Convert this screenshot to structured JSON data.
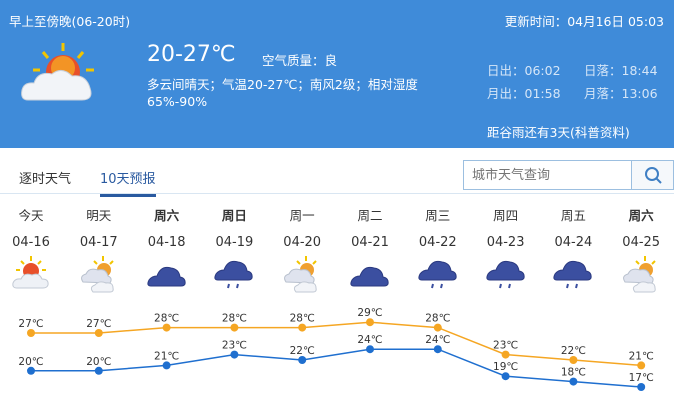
{
  "header": {
    "period": "早上至傍晚(06-20时)",
    "updated": "更新时间：04月16日 05:03",
    "temp_range": "20-27℃",
    "air_quality": "空气质量：良",
    "description": "多云间晴天；气温20-27℃；南风2级；相对湿度",
    "humidity": "65%-90%",
    "sunrise": "日出：06:02",
    "sunset": "日落：18:44",
    "moonrise": "月出：01:58",
    "moonset": "月落：13:06",
    "solar_term": "距谷雨还有3天(科普资料)",
    "icon": "partly-cloudy-icon",
    "bg_color": "#3f8bd9"
  },
  "tabs": [
    {
      "label": "逐时天气",
      "active": false
    },
    {
      "label": "10天预报",
      "active": true
    }
  ],
  "search": {
    "placeholder": "城市天气查询",
    "icon": "search-icon"
  },
  "days": [
    {
      "name": "今天",
      "date": "04-16",
      "icon": "sun-cloud",
      "bold": false
    },
    {
      "name": "明天",
      "date": "04-17",
      "icon": "cloud-sun",
      "bold": false
    },
    {
      "name": "周六",
      "date": "04-18",
      "icon": "overcast",
      "bold": true
    },
    {
      "name": "周日",
      "date": "04-19",
      "icon": "rain",
      "bold": true
    },
    {
      "name": "周一",
      "date": "04-20",
      "icon": "cloud-sun",
      "bold": false
    },
    {
      "name": "周二",
      "date": "04-21",
      "icon": "overcast",
      "bold": false
    },
    {
      "name": "周三",
      "date": "04-22",
      "icon": "rain",
      "bold": false
    },
    {
      "name": "周四",
      "date": "04-23",
      "icon": "rain",
      "bold": false
    },
    {
      "name": "周五",
      "date": "04-24",
      "icon": "rain",
      "bold": false
    },
    {
      "name": "周六",
      "date": "04-25",
      "icon": "cloud-sun",
      "bold": true
    }
  ],
  "chart_data": {
    "type": "line",
    "categories": [
      "04-16",
      "04-17",
      "04-18",
      "04-19",
      "04-20",
      "04-21",
      "04-22",
      "04-23",
      "04-24",
      "04-25"
    ],
    "unit": "℃",
    "series": [
      {
        "values": [
          27,
          27,
          28,
          28,
          28,
          29,
          28,
          23,
          22,
          21
        ],
        "color": "#f5a623"
      },
      {
        "values": [
          20,
          20,
          21,
          23,
          22,
          24,
          24,
          19,
          18,
          17
        ],
        "color": "#1f6fcf"
      }
    ]
  }
}
